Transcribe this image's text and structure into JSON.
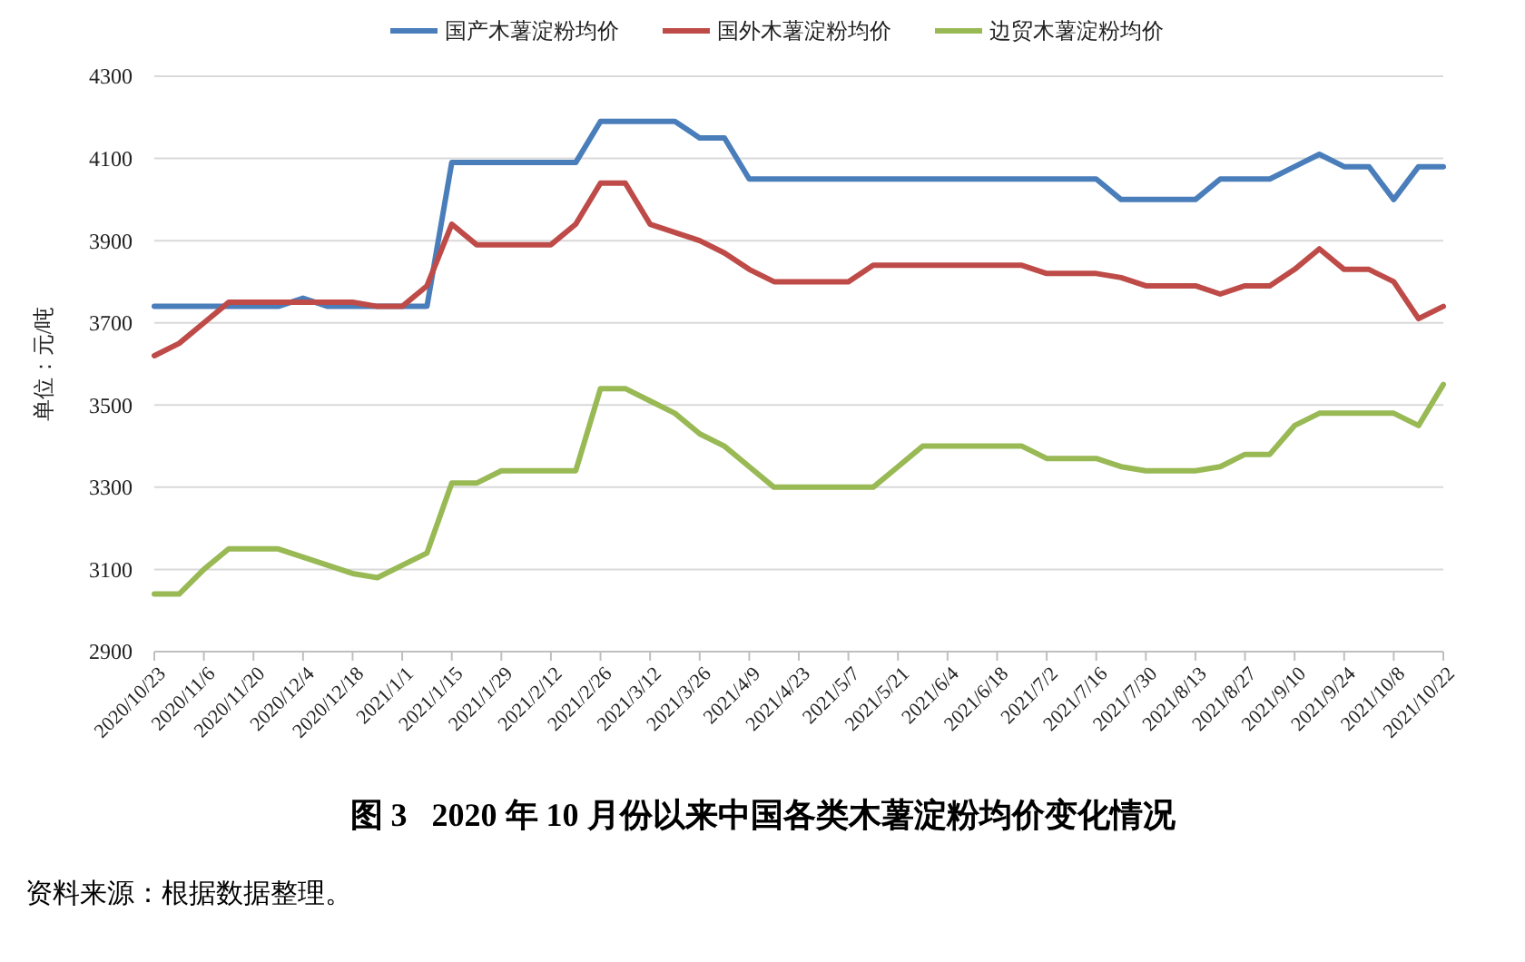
{
  "chart_data": {
    "type": "line",
    "title": "图 3   2020 年 10 月份以来中国各类木薯淀粉均价变化情况",
    "ylabel": "单位：元/吨",
    "annotations": [
      "资料来源：根据数据整理。"
    ],
    "categories": [
      "2020/10/23",
      null,
      "2020/11/6",
      null,
      "2020/11/20",
      null,
      "2020/12/4",
      null,
      "2020/12/18",
      null,
      "2021/1/1",
      null,
      "2021/1/15",
      null,
      "2021/1/29",
      null,
      "2021/2/12",
      null,
      "2021/2/26",
      null,
      "2021/3/12",
      null,
      "2021/3/26",
      null,
      "2021/4/9",
      null,
      "2021/4/23",
      null,
      "2021/5/7",
      null,
      "2021/5/21",
      null,
      "2021/6/4",
      null,
      "2021/6/18",
      null,
      "2021/7/2",
      null,
      "2021/7/16",
      null,
      "2021/7/30",
      null,
      "2021/8/13",
      null,
      "2021/8/27",
      null,
      "2021/9/10",
      null,
      "2021/9/24",
      null,
      "2021/10/8",
      null,
      "2021/10/22"
    ],
    "series": [
      {
        "name": "国产木薯淀粉均价",
        "color": "#4a7ebb",
        "values": [
          3740,
          3740,
          3740,
          3740,
          3740,
          3740,
          3760,
          3740,
          3740,
          3740,
          3740,
          3740,
          4090,
          4090,
          4090,
          4090,
          4090,
          4090,
          4190,
          4190,
          4190,
          4190,
          4150,
          4150,
          4050,
          4050,
          4050,
          4050,
          4050,
          4050,
          4050,
          4050,
          4050,
          4050,
          4050,
          4050,
          4050,
          4050,
          4050,
          4000,
          4000,
          4000,
          4000,
          4050,
          4050,
          4050,
          4080,
          4110,
          4080,
          4080,
          4000,
          4080,
          4080
        ]
      },
      {
        "name": "国外木薯淀粉均价",
        "color": "#be4b48",
        "values": [
          3620,
          3650,
          3700,
          3750,
          3750,
          3750,
          3750,
          3750,
          3750,
          3740,
          3740,
          3790,
          3940,
          3890,
          3890,
          3890,
          3890,
          3940,
          4040,
          4040,
          3940,
          3920,
          3900,
          3870,
          3830,
          3800,
          3800,
          3800,
          3800,
          3840,
          3840,
          3840,
          3840,
          3840,
          3840,
          3840,
          3820,
          3820,
          3820,
          3810,
          3790,
          3790,
          3790,
          3770,
          3790,
          3790,
          3830,
          3880,
          3830,
          3830,
          3800,
          3710,
          3740
        ]
      },
      {
        "name": "边贸木薯淀粉均价",
        "color": "#98b954",
        "values": [
          3040,
          3040,
          3100,
          3150,
          3150,
          3150,
          3130,
          3110,
          3090,
          3080,
          3110,
          3140,
          3310,
          3310,
          3340,
          3340,
          3340,
          3340,
          3540,
          3540,
          3510,
          3480,
          3430,
          3400,
          3350,
          3300,
          3300,
          3300,
          3300,
          3300,
          3350,
          3400,
          3400,
          3400,
          3400,
          3400,
          3370,
          3370,
          3370,
          3350,
          3340,
          3340,
          3340,
          3350,
          3380,
          3380,
          3450,
          3480,
          3480,
          3480,
          3480,
          3450,
          3550
        ]
      }
    ],
    "ylim": [
      2900,
      4300
    ],
    "yticks": [
      2900,
      3100,
      3300,
      3500,
      3700,
      3900,
      4100,
      4300
    ],
    "grid": "y",
    "legend": "top",
    "line_style": "solid",
    "marker": "none"
  }
}
